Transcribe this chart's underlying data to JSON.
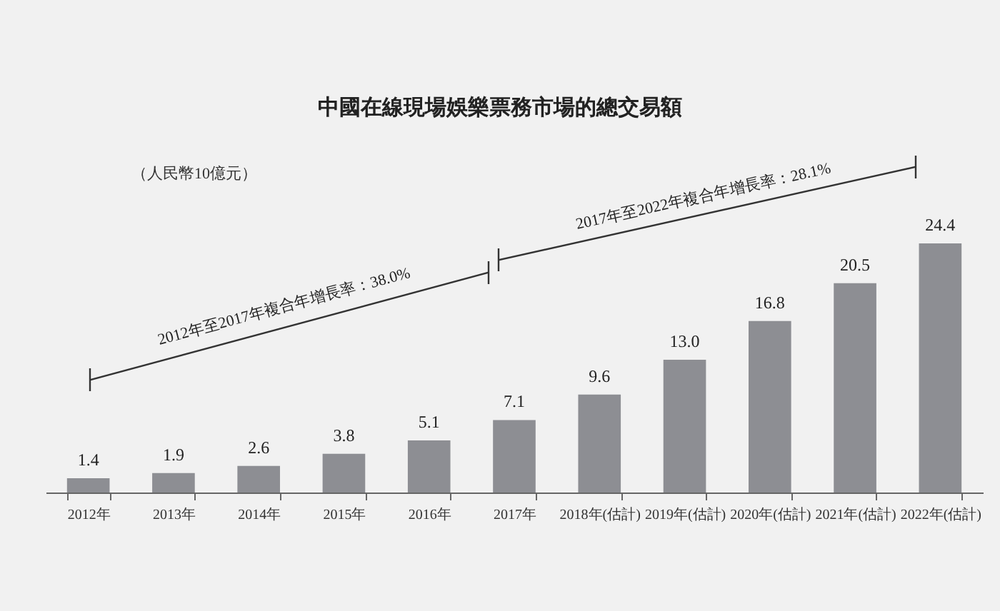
{
  "chart_data": {
    "type": "bar",
    "title": "中國在線現場娛樂票務市場的總交易額",
    "ylabel": "（人民幣10億元）",
    "categories": [
      "2012年",
      "2013年",
      "2014年",
      "2015年",
      "2016年",
      "2017年",
      "2018年(估計)",
      "2019年(估計)",
      "2020年(估計)",
      "2021年(估計)",
      "2022年(估計)"
    ],
    "values": [
      1.4,
      1.9,
      2.6,
      3.8,
      5.1,
      7.1,
      9.6,
      13.0,
      16.8,
      20.5,
      24.4
    ],
    "value_labels": [
      "1.4",
      "1.9",
      "2.6",
      "3.8",
      "5.1",
      "7.1",
      "9.6",
      "13.0",
      "16.8",
      "20.5",
      "24.4"
    ],
    "color": "#8d8e93",
    "tick_labels": "x",
    "annotations": [
      "2012年至2017年複合年增長率：38.0%",
      "2017年至2022年複合年增長率：28.1%"
    ]
  }
}
